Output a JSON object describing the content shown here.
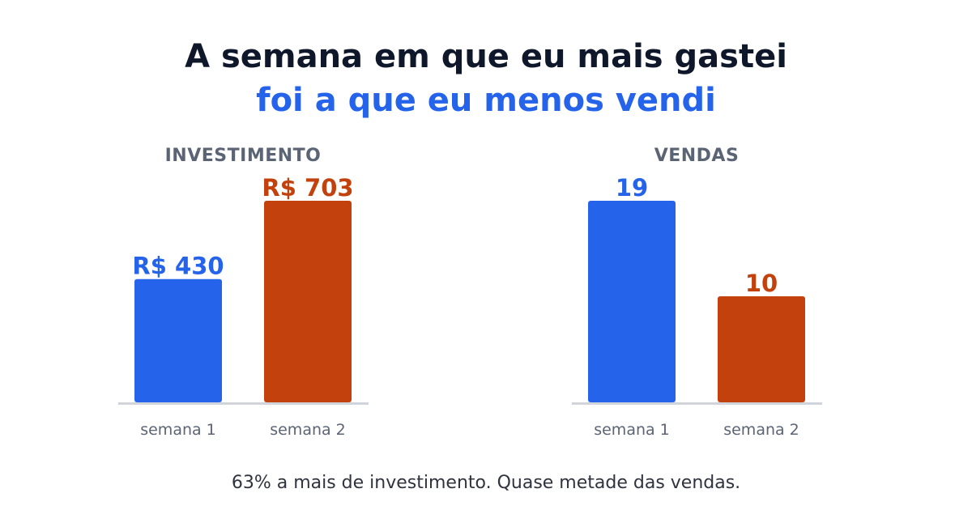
{
  "header": {
    "title_line1": "A semana em que eu mais gastei",
    "title_line2": "foi a que eu menos vendi"
  },
  "caption": "63% a mais de investimento. Quase metade das vendas.",
  "colors": {
    "week1": "#2563eb",
    "week2": "#c2410c",
    "axis": "#d1d5db",
    "tick": "#5b6475"
  },
  "chart_data": [
    {
      "type": "bar",
      "title": "INVESTIMENTO",
      "categories": [
        "semana 1",
        "semana 2"
      ],
      "values": [
        430,
        703
      ],
      "data_labels": [
        "R$ 430",
        "R$ 703"
      ],
      "ylim": [
        0,
        703
      ]
    },
    {
      "type": "bar",
      "title": "VENDAS",
      "categories": [
        "semana 1",
        "semana 2"
      ],
      "values": [
        19,
        10
      ],
      "data_labels": [
        "19",
        "10"
      ],
      "ylim": [
        0,
        19
      ]
    }
  ]
}
